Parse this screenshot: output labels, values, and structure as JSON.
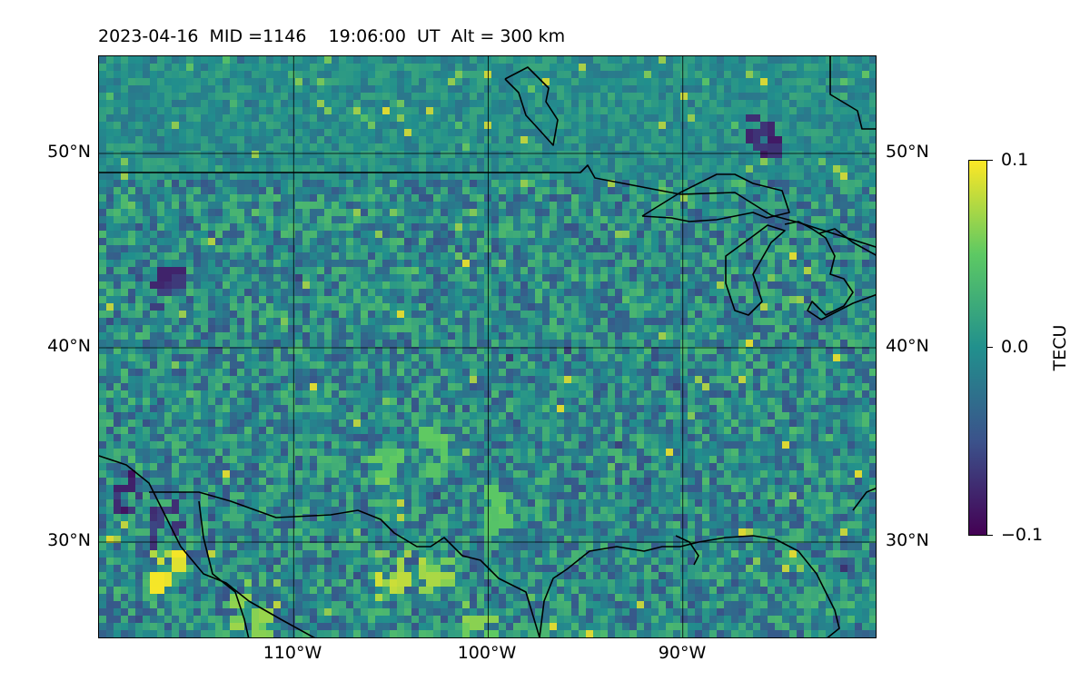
{
  "title": "2023-04-16  MID =1146    19:06:00  UT  Alt = 300 km",
  "map": {
    "extent": {
      "lon_min": -120,
      "lon_max": -80,
      "lat_min": 25,
      "lat_max": 55
    },
    "lat_labels": [
      "50°N",
      "40°N",
      "30°N"
    ],
    "lon_labels": [
      "110°W",
      "100°W",
      "90°W"
    ],
    "lat_values": [
      50,
      40,
      30
    ],
    "lon_values": [
      -110,
      -100,
      -90
    ],
    "gridlines": true
  },
  "colorbar": {
    "label": "TECU",
    "tick_labels": [
      "0.1",
      "0.0",
      "−0.1"
    ],
    "range": [
      -0.1,
      0.1
    ],
    "colormap": "viridis",
    "colors": [
      "#440154",
      "#3b528b",
      "#21908d",
      "#5dc963",
      "#fde725"
    ]
  },
  "chart_data": {
    "type": "heatmap",
    "title": "2023-04-16  MID =1146    19:06:00  UT  Alt = 300 km",
    "colorbar_label": "TECU",
    "vmin": -0.1,
    "vmax": 0.1,
    "xlim": [
      -120,
      -80
    ],
    "ylim": [
      25,
      55
    ],
    "anomalies": [
      {
        "lon": -118.5,
        "lat": 32.5,
        "value": -0.09
      },
      {
        "lon": -116.5,
        "lat": 31.0,
        "value": -0.08
      },
      {
        "lon": -116.5,
        "lat": 28.5,
        "value": 0.1
      },
      {
        "lon": -112.5,
        "lat": 27.0,
        "value": 0.08
      },
      {
        "lon": -111.5,
        "lat": 25.5,
        "value": 0.07
      },
      {
        "lon": -105.0,
        "lat": 28.0,
        "value": 0.09
      },
      {
        "lon": -103.0,
        "lat": 28.5,
        "value": 0.08
      },
      {
        "lon": -100.5,
        "lat": 26.2,
        "value": 0.07
      },
      {
        "lon": -116.5,
        "lat": 43.0,
        "value": -0.08
      },
      {
        "lon": -86.0,
        "lat": 51.0,
        "value": -0.09
      },
      {
        "lon": -105.5,
        "lat": 34.0,
        "value": 0.06
      },
      {
        "lon": -103.0,
        "lat": 35.0,
        "value": 0.06
      },
      {
        "lon": -100.0,
        "lat": 32.0,
        "value": 0.06
      }
    ]
  }
}
